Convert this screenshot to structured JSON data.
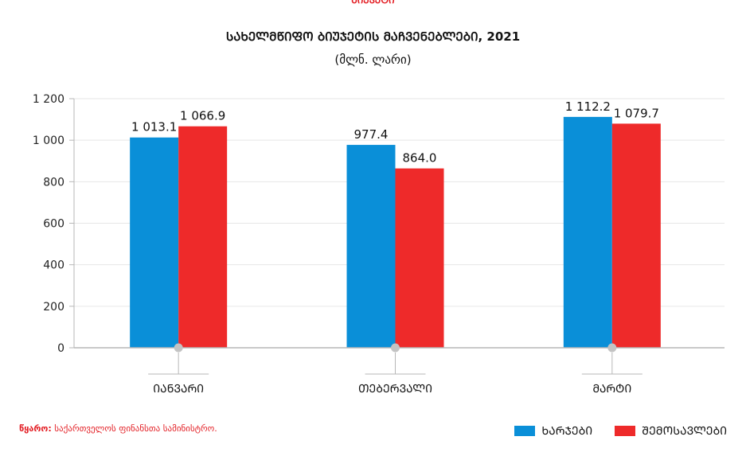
{
  "header": {
    "top_label": "ᲑᲘᲣᲯᲔᲢᲘ",
    "title": "ᲡᲐᲮᲔᲚᲛᲬᲘᲤᲝ ᲑᲘᲣᲯᲔᲢᲘᲡ ᲛᲐᲩᲕᲔᲜᲔᲑᲚᲔᲑᲘ, 2021",
    "subtitle": "(მლნ. ლარი)"
  },
  "source": {
    "label": "წყარო:",
    "text": "საქართველოს ფინანსთა სამინისტრო."
  },
  "colors": {
    "expenditures": "#0a8fd8",
    "revenues": "#ee2a2a",
    "axis": "#b7b7b7",
    "grid": "#e6e6e6"
  },
  "chart_data": {
    "type": "bar",
    "categories": [
      "ᲘᲐᲜᲕᲐᲠᲘ",
      "ᲗᲔᲑᲔᲠᲕᲐᲚᲘ",
      "ᲛᲐᲠᲢᲘ"
    ],
    "series": [
      {
        "name": "ᲮᲐᲠᲯᲔᲑᲘ",
        "values": [
          1013.1,
          977.4,
          1112.2
        ],
        "labels": [
          "1 013.1",
          "977.4",
          "1 112.2"
        ]
      },
      {
        "name": "ᲨᲔᲛᲝᲡᲐᲕᲚᲔᲑᲘ",
        "values": [
          1066.9,
          864.0,
          1079.7
        ],
        "labels": [
          "1 066.9",
          "864.0",
          "1 079.7"
        ]
      }
    ],
    "yticks": [
      "0",
      "200",
      "400",
      "600",
      "800",
      "1 000",
      "1 200"
    ],
    "ytick_values": [
      0,
      200,
      400,
      600,
      800,
      1000,
      1200
    ],
    "ylim": [
      0,
      1200
    ],
    "grid": true,
    "legend": "bottom-right"
  }
}
